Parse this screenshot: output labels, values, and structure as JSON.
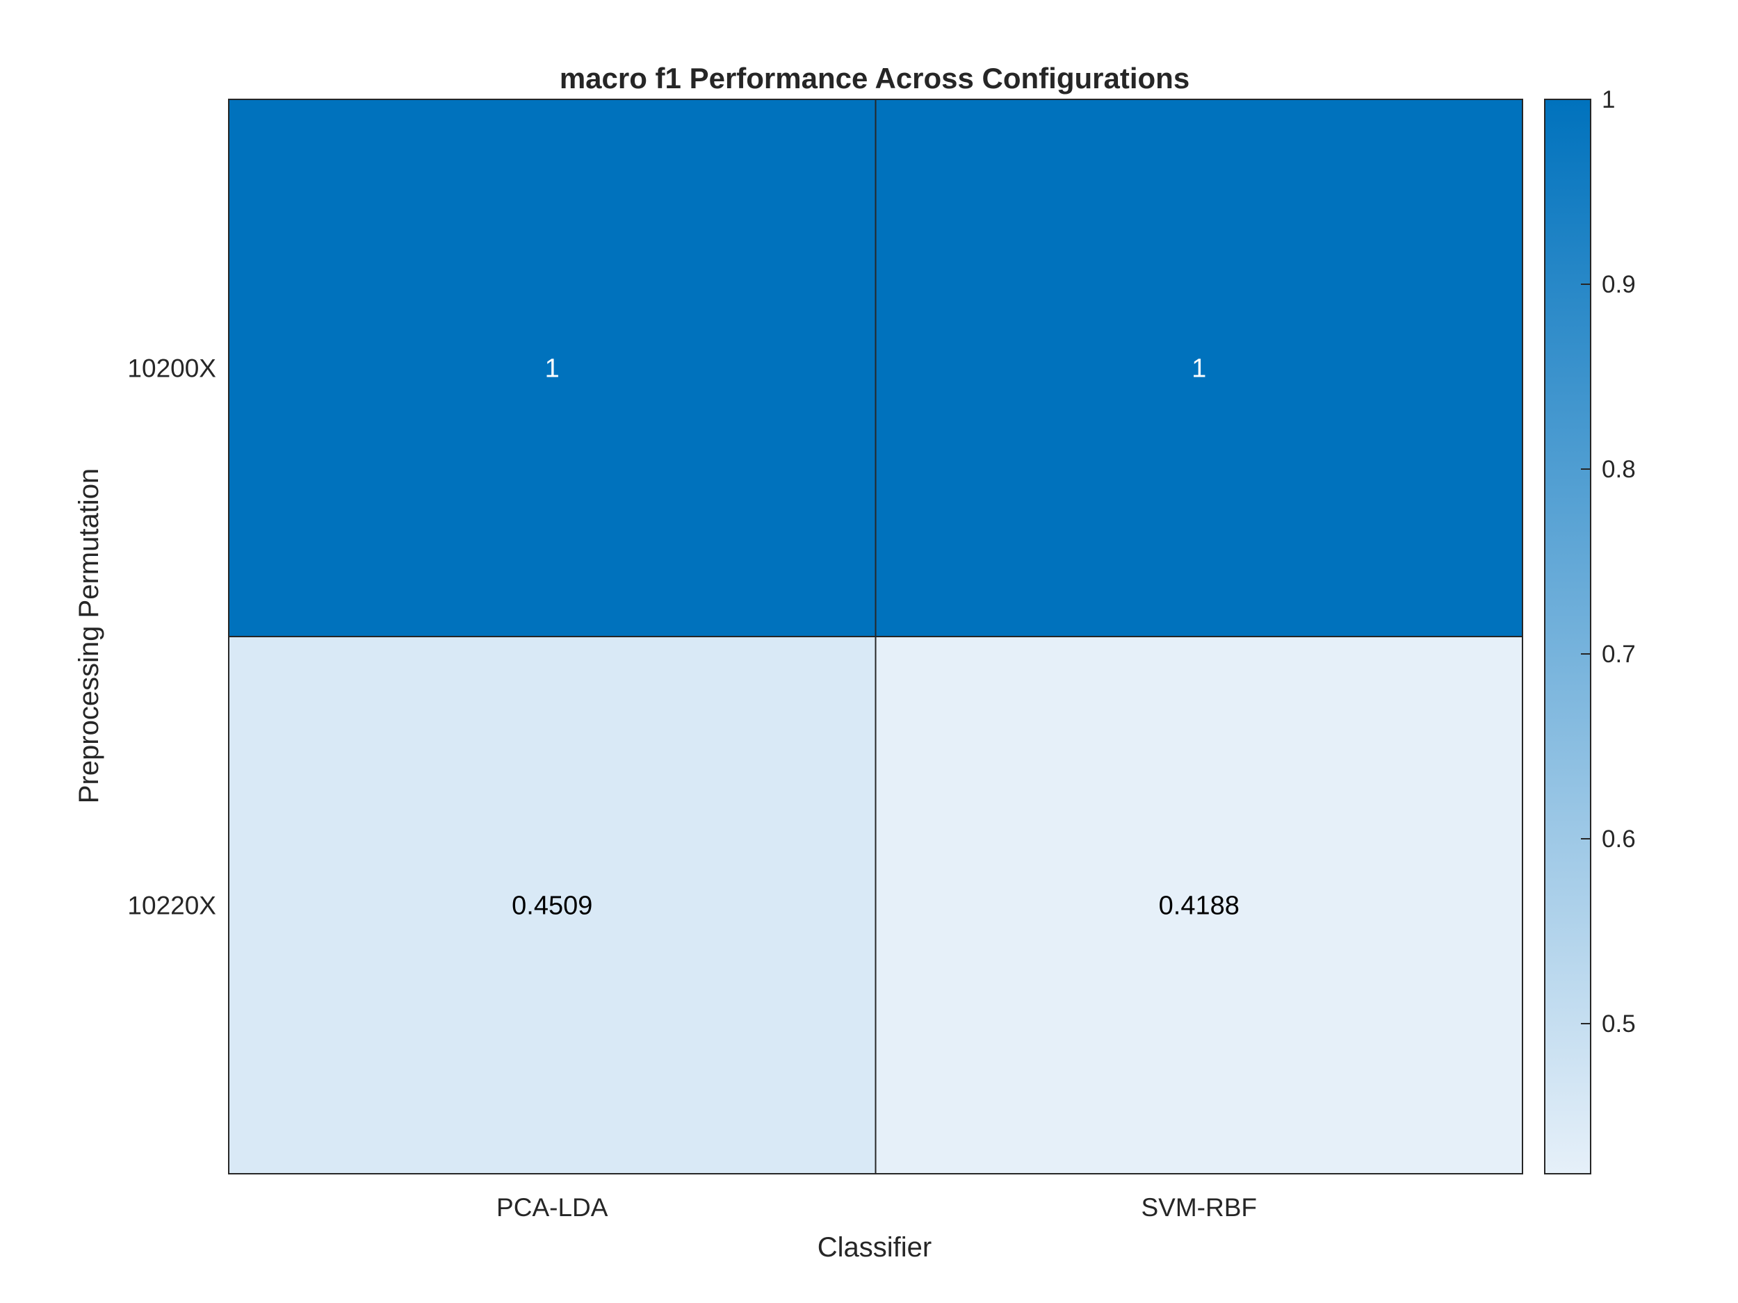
{
  "chart_data": {
    "type": "heatmap",
    "title": "macro f1 Performance Across Configurations",
    "xlabel": "Classifier",
    "ylabel": "Preprocessing Permutation",
    "x_categories": [
      "PCA-LDA",
      "SVM-RBF"
    ],
    "y_categories": [
      "10200X",
      "10220X"
    ],
    "values": [
      [
        1,
        1
      ],
      [
        0.4509,
        0.4188
      ]
    ],
    "cell_labels": [
      [
        "1",
        "1"
      ],
      [
        "0.4509",
        "0.4188"
      ]
    ],
    "colorbar": {
      "range": [
        0.4188,
        1
      ],
      "ticks": [
        0.5,
        0.6,
        0.7,
        0.8,
        0.9,
        1
      ],
      "tick_labels": [
        "0.5",
        "0.6",
        "0.7",
        "0.8",
        "0.9",
        "1"
      ],
      "color_low": "#E6F0F9",
      "color_high": "#0072BD"
    },
    "grid": false,
    "legend": "colorbar right"
  }
}
